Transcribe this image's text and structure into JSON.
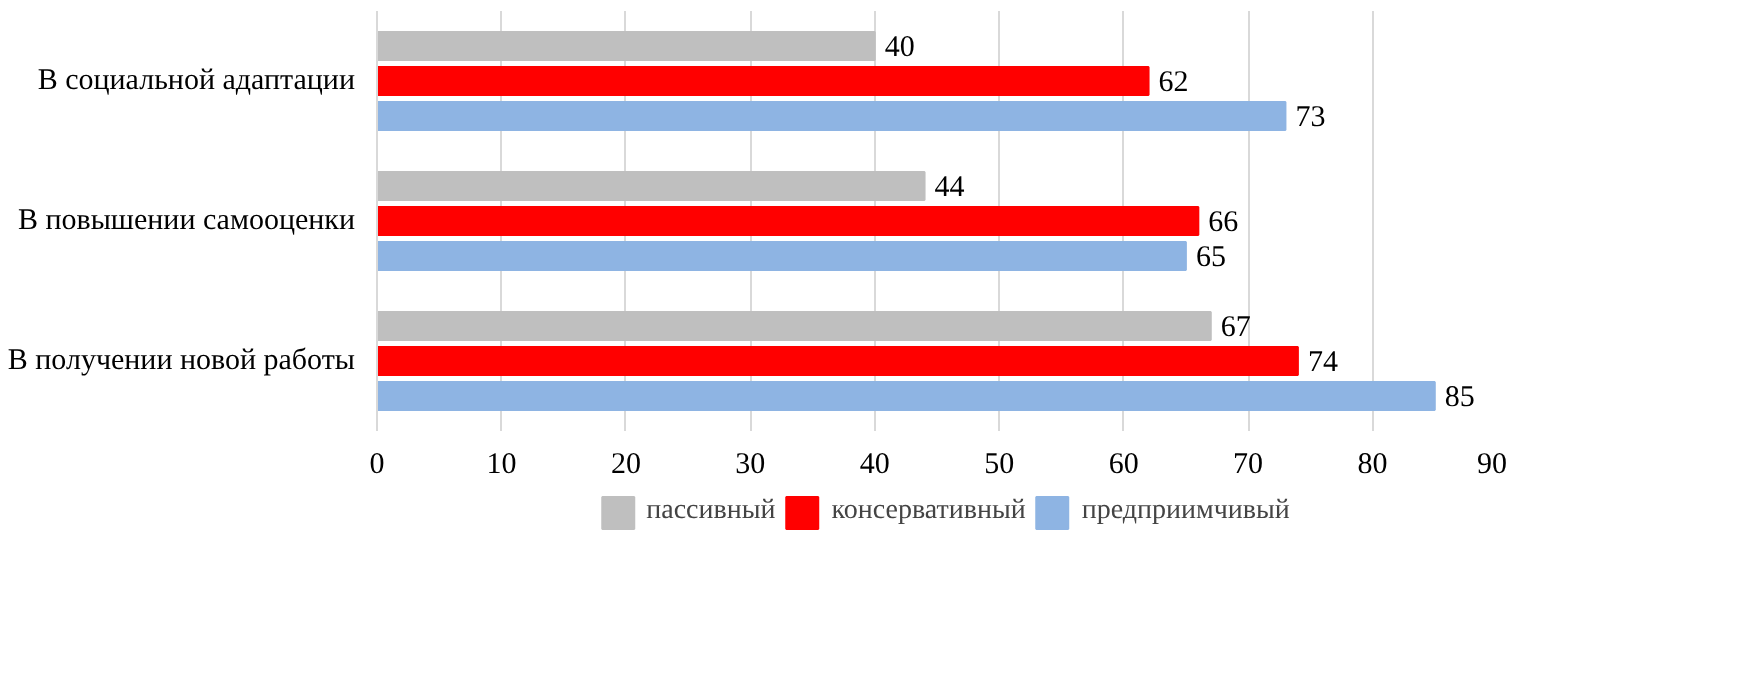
{
  "chart_data": {
    "type": "bar",
    "orientation": "horizontal",
    "categories": [
      "В социальной адаптации",
      "В повышении самооценки",
      "В получении новой работы"
    ],
    "series": [
      {
        "name": "пассивный",
        "color": "#bfbfbf",
        "values": [
          40,
          44,
          67
        ]
      },
      {
        "name": "консервативный",
        "color": "#ff0000",
        "values": [
          62,
          66,
          74
        ]
      },
      {
        "name": "предприимчивый",
        "color": "#8eb4e3",
        "values": [
          73,
          65,
          85
        ]
      }
    ],
    "xlim": [
      0,
      90
    ],
    "xticks": [
      0,
      10,
      20,
      30,
      40,
      50,
      60,
      70,
      80,
      90
    ],
    "grid": "x",
    "legend": "bottom",
    "data_labels": true
  }
}
